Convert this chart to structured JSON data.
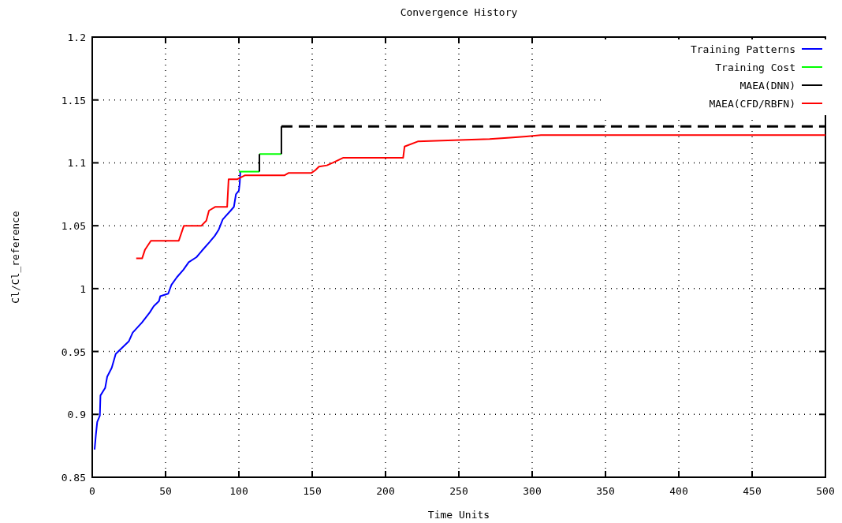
{
  "chart_data": {
    "type": "line",
    "title": "Convergence History",
    "xlabel": "Time Units",
    "ylabel": "Cl/Cl_reference",
    "xlim": [
      0,
      500
    ],
    "ylim": [
      0.85,
      1.2
    ],
    "xticks": [
      0,
      50,
      100,
      150,
      200,
      250,
      300,
      350,
      400,
      450,
      500
    ],
    "yticks": [
      0.85,
      0.9,
      0.95,
      1,
      1.05,
      1.1,
      1.15,
      1.2
    ],
    "grid": true,
    "legend": "top right",
    "line_style": "solid",
    "series": [
      {
        "name": "Training Patterns",
        "color": "#0000ff",
        "x": [
          1.6,
          2.5,
          3.4,
          5.2,
          5.6,
          8.8,
          10.2,
          13.3,
          16,
          18.6,
          24.9,
          27.6,
          33.9,
          39.2,
          41.9,
          45.5,
          46.4,
          51.8,
          54,
          57.7,
          62.2,
          65.8,
          71.1,
          74.7,
          80,
          83.6,
          86.3,
          89,
          94.4,
          96.6,
          98,
          100,
          100.6,
          101
        ],
        "values": [
          0.872,
          0.884,
          0.894,
          0.899,
          0.915,
          0.921,
          0.93,
          0.937,
          0.948,
          0.951,
          0.958,
          0.965,
          0.973,
          0.981,
          0.986,
          0.99,
          0.994,
          0.996,
          1.003,
          1.009,
          1.015,
          1.021,
          1.025,
          1.03,
          1.037,
          1.042,
          1.047,
          1.055,
          1.062,
          1.065,
          1.075,
          1.078,
          1.084,
          1.093
        ]
      },
      {
        "name": "Training Cost",
        "color": "#00ff00",
        "x": [
          100,
          114
        ],
        "values": [
          1.093,
          1.093
        ]
      },
      {
        "color": "#00ff00",
        "x": [
          114,
          129
        ],
        "values": [
          1.107,
          1.107
        ]
      },
      {
        "name": "MAEA(DNN)",
        "color": "#000000",
        "x": [
          129,
          129
        ],
        "values": [
          1.107,
          1.129
        ]
      },
      {
        "color": "#000000",
        "x": [
          114,
          114
        ],
        "values": [
          1.093,
          1.107
        ]
      },
      {
        "color": "#000000",
        "line_style": "dashed",
        "x": [
          129,
          500
        ],
        "values": [
          1.129,
          1.129
        ]
      },
      {
        "name": "MAEA(CFD/RBFN)",
        "color": "#ff0000",
        "x": [
          30,
          34,
          36,
          40,
          59,
          62.5,
          74.4,
          77.8,
          79.6,
          84,
          92,
          93,
          99,
          104,
          131,
          134,
          149.5,
          152,
          154.6,
          160,
          164,
          171,
          212,
          213,
          222,
          271,
          285,
          296,
          306,
          500
        ],
        "values": [
          1.024,
          1.024,
          1.031,
          1.038,
          1.038,
          1.05,
          1.05,
          1.054,
          1.062,
          1.065,
          1.065,
          1.087,
          1.087,
          1.09,
          1.09,
          1.092,
          1.092,
          1.094,
          1.097,
          1.098,
          1.1,
          1.104,
          1.104,
          1.113,
          1.117,
          1.119,
          1.12,
          1.121,
          1.122,
          1.122
        ]
      }
    ]
  }
}
